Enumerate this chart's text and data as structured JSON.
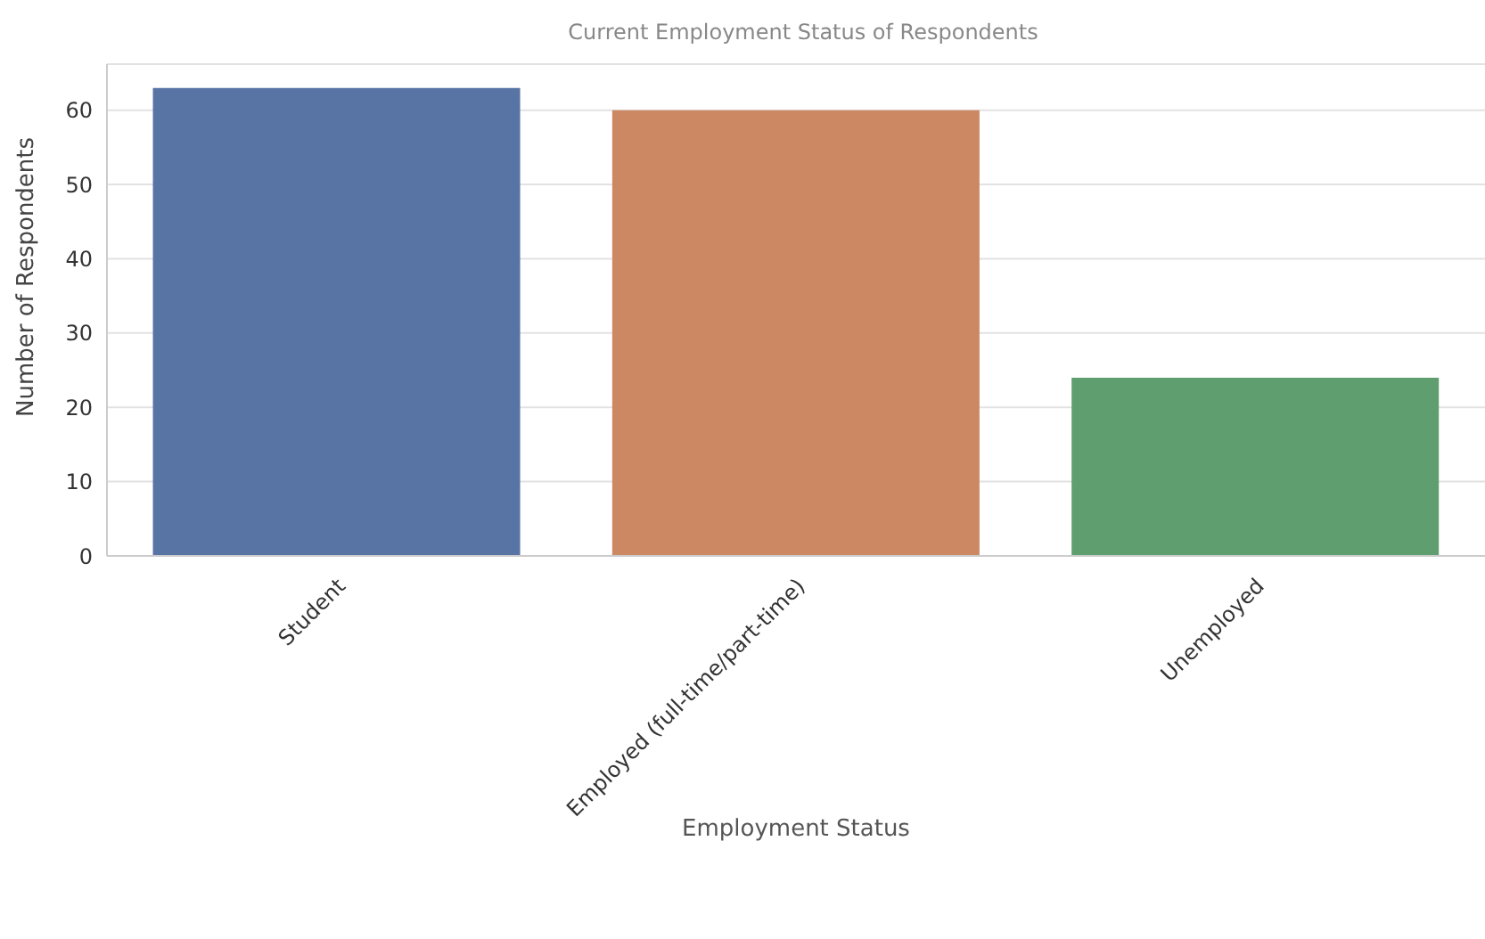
{
  "chart_data": {
    "type": "bar",
    "title": "Current Employment Status of Respondents",
    "xlabel": "Employment Status",
    "ylabel": "Number of Respondents",
    "categories": [
      "Student",
      "Employed (full-time/part-time)",
      "Unemployed"
    ],
    "values": [
      63,
      60,
      24
    ],
    "colors": [
      "#5874a4",
      "#cc8863",
      "#5f9e6e"
    ],
    "ylim": [
      0,
      66.2
    ],
    "yticks": [
      0,
      10,
      20,
      30,
      40,
      50,
      60
    ],
    "grid": "y",
    "legend": false
  }
}
